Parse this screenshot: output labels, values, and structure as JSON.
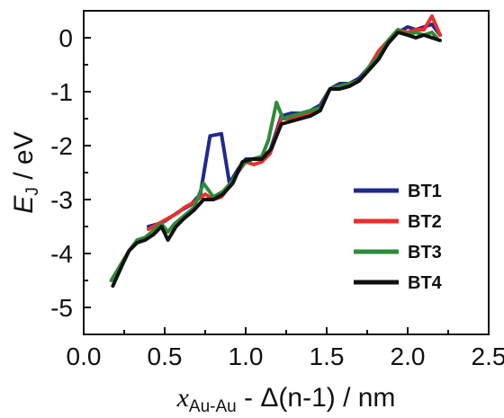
{
  "chart_data": {
    "type": "line",
    "title": "",
    "xlabel": {
      "symbol": "x",
      "subscript": "Au-Au",
      "suffix": " - Δ(n-1) / nm"
    },
    "ylabel": {
      "symbol": "E",
      "subscript": "J",
      "suffix": " / eV"
    },
    "xlim": [
      0.0,
      2.5
    ],
    "ylim": [
      -5.5,
      0.5
    ],
    "xticks": [
      "0.0",
      "0.5",
      "1.0",
      "1.5",
      "2.0",
      "2.5"
    ],
    "xtick_values": [
      0.0,
      0.5,
      1.0,
      1.5,
      2.0,
      2.5
    ],
    "yticks": [
      "0",
      "-1",
      "-2",
      "-3",
      "-4",
      "-5"
    ],
    "ytick_values": [
      0,
      -1,
      -2,
      -3,
      -4,
      -5
    ],
    "grid": false,
    "legend_position": "lower-right",
    "series": [
      {
        "name": "BT1",
        "color": "#1f2a8c",
        "points": [
          [
            0.4,
            -3.5
          ],
          [
            0.46,
            -3.45
          ],
          [
            0.5,
            -3.4
          ],
          [
            0.55,
            -3.3
          ],
          [
            0.6,
            -3.2
          ],
          [
            0.66,
            -3.1
          ],
          [
            0.72,
            -2.9
          ],
          [
            0.78,
            -1.82
          ],
          [
            0.85,
            -1.78
          ],
          [
            0.9,
            -2.7
          ],
          [
            0.95,
            -2.45
          ],
          [
            1.0,
            -2.25
          ],
          [
            1.05,
            -2.25
          ],
          [
            1.1,
            -2.2
          ],
          [
            1.15,
            -2.1
          ],
          [
            1.22,
            -1.45
          ],
          [
            1.28,
            -1.4
          ],
          [
            1.34,
            -1.4
          ],
          [
            1.4,
            -1.35
          ],
          [
            1.46,
            -1.25
          ],
          [
            1.52,
            -0.95
          ],
          [
            1.58,
            -0.85
          ],
          [
            1.64,
            -0.85
          ],
          [
            1.7,
            -0.75
          ],
          [
            1.76,
            -0.55
          ],
          [
            1.82,
            -0.35
          ],
          [
            1.88,
            -0.1
          ],
          [
            1.94,
            0.1
          ],
          [
            2.0,
            0.2
          ],
          [
            2.05,
            0.15
          ],
          [
            2.1,
            0.2
          ],
          [
            2.15,
            0.25
          ],
          [
            2.2,
            0.05
          ]
        ]
      },
      {
        "name": "BT2",
        "color": "#e8302c",
        "points": [
          [
            0.4,
            -3.55
          ],
          [
            0.46,
            -3.45
          ],
          [
            0.52,
            -3.35
          ],
          [
            0.58,
            -3.25
          ],
          [
            0.62,
            -3.15
          ],
          [
            0.68,
            -3.05
          ],
          [
            0.75,
            -2.9
          ],
          [
            0.8,
            -3.0
          ],
          [
            0.85,
            -2.95
          ],
          [
            0.9,
            -2.75
          ],
          [
            0.95,
            -2.5
          ],
          [
            1.0,
            -2.3
          ],
          [
            1.05,
            -2.35
          ],
          [
            1.1,
            -2.3
          ],
          [
            1.15,
            -2.15
          ],
          [
            1.22,
            -1.5
          ],
          [
            1.28,
            -1.5
          ],
          [
            1.34,
            -1.45
          ],
          [
            1.4,
            -1.4
          ],
          [
            1.46,
            -1.3
          ],
          [
            1.52,
            -0.95
          ],
          [
            1.58,
            -0.9
          ],
          [
            1.64,
            -0.85
          ],
          [
            1.7,
            -0.8
          ],
          [
            1.76,
            -0.55
          ],
          [
            1.82,
            -0.25
          ],
          [
            1.88,
            -0.05
          ],
          [
            1.94,
            0.15
          ],
          [
            2.0,
            0.1
          ],
          [
            2.05,
            0.15
          ],
          [
            2.1,
            0.15
          ],
          [
            2.15,
            0.4
          ],
          [
            2.2,
            0.05
          ]
        ]
      },
      {
        "name": "BT3",
        "color": "#2e8b3a",
        "points": [
          [
            0.17,
            -4.5
          ],
          [
            0.22,
            -4.25
          ],
          [
            0.28,
            -3.95
          ],
          [
            0.33,
            -3.75
          ],
          [
            0.38,
            -3.7
          ],
          [
            0.42,
            -3.6
          ],
          [
            0.48,
            -3.45
          ],
          [
            0.52,
            -3.6
          ],
          [
            0.56,
            -3.45
          ],
          [
            0.62,
            -3.3
          ],
          [
            0.68,
            -3.15
          ],
          [
            0.74,
            -2.7
          ],
          [
            0.8,
            -2.95
          ],
          [
            0.86,
            -2.85
          ],
          [
            0.92,
            -2.65
          ],
          [
            0.98,
            -2.35
          ],
          [
            1.04,
            -2.25
          ],
          [
            1.1,
            -2.2
          ],
          [
            1.14,
            -1.9
          ],
          [
            1.19,
            -1.2
          ],
          [
            1.23,
            -1.5
          ],
          [
            1.28,
            -1.45
          ],
          [
            1.34,
            -1.4
          ],
          [
            1.4,
            -1.35
          ],
          [
            1.46,
            -1.3
          ],
          [
            1.52,
            -0.95
          ],
          [
            1.58,
            -0.9
          ],
          [
            1.64,
            -0.85
          ],
          [
            1.7,
            -0.8
          ],
          [
            1.76,
            -0.55
          ],
          [
            1.82,
            -0.35
          ],
          [
            1.88,
            -0.05
          ],
          [
            1.94,
            0.15
          ],
          [
            2.0,
            0.05
          ],
          [
            2.05,
            0.1
          ],
          [
            2.1,
            0.05
          ],
          [
            2.15,
            0.1
          ],
          [
            2.18,
            0.0
          ]
        ]
      },
      {
        "name": "BT4",
        "color": "#111111",
        "points": [
          [
            0.18,
            -4.6
          ],
          [
            0.24,
            -4.2
          ],
          [
            0.28,
            -3.95
          ],
          [
            0.33,
            -3.8
          ],
          [
            0.38,
            -3.75
          ],
          [
            0.43,
            -3.65
          ],
          [
            0.48,
            -3.5
          ],
          [
            0.52,
            -3.75
          ],
          [
            0.57,
            -3.5
          ],
          [
            0.62,
            -3.35
          ],
          [
            0.68,
            -3.2
          ],
          [
            0.74,
            -3.0
          ],
          [
            0.8,
            -3.0
          ],
          [
            0.86,
            -2.9
          ],
          [
            0.92,
            -2.7
          ],
          [
            0.98,
            -2.3
          ],
          [
            1.04,
            -2.25
          ],
          [
            1.1,
            -2.25
          ],
          [
            1.16,
            -2.05
          ],
          [
            1.22,
            -1.6
          ],
          [
            1.28,
            -1.55
          ],
          [
            1.34,
            -1.5
          ],
          [
            1.4,
            -1.45
          ],
          [
            1.46,
            -1.35
          ],
          [
            1.52,
            -0.95
          ],
          [
            1.58,
            -0.95
          ],
          [
            1.64,
            -0.9
          ],
          [
            1.7,
            -0.8
          ],
          [
            1.76,
            -0.6
          ],
          [
            1.82,
            -0.4
          ],
          [
            1.88,
            -0.1
          ],
          [
            1.94,
            0.1
          ],
          [
            2.0,
            0.05
          ],
          [
            2.05,
            0.0
          ],
          [
            2.1,
            0.05
          ],
          [
            2.15,
            0.0
          ],
          [
            2.2,
            -0.05
          ]
        ]
      }
    ]
  }
}
